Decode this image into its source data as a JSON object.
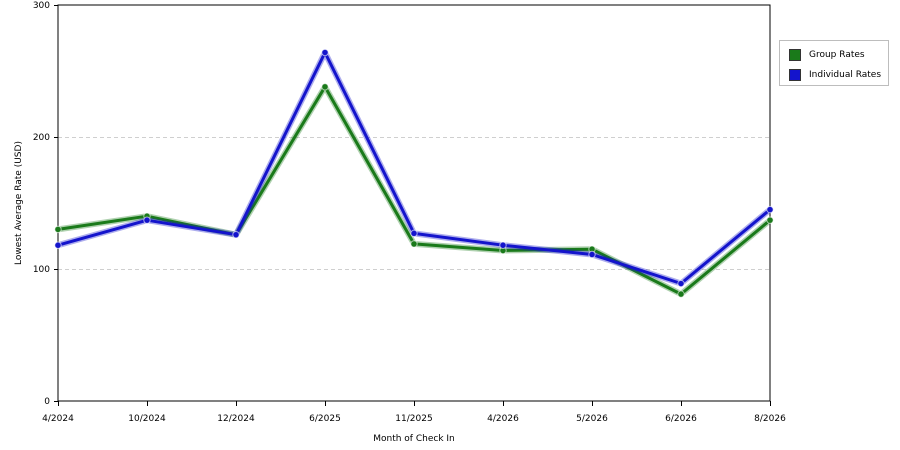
{
  "chart_data": {
    "type": "line",
    "xlabel": "Month of Check In",
    "ylabel": "Lowest Average Rate (USD)",
    "categories": [
      "4/2024",
      "10/2024",
      "12/2024",
      "6/2025",
      "11/2025",
      "4/2026",
      "5/2026",
      "6/2026",
      "8/2026"
    ],
    "ylim": [
      0,
      300
    ],
    "yticks": [
      0,
      100,
      200,
      300
    ],
    "grid": true,
    "legend_position": "right",
    "series": [
      {
        "name": "Group Rates",
        "color": "#1a7a1a",
        "values": [
          130,
          140,
          126,
          238,
          119,
          114,
          115,
          81,
          137
        ]
      },
      {
        "name": "Individual Rates",
        "color": "#1414cc",
        "values": [
          118,
          137,
          126,
          264,
          127,
          118,
          111,
          89,
          145
        ]
      }
    ]
  }
}
